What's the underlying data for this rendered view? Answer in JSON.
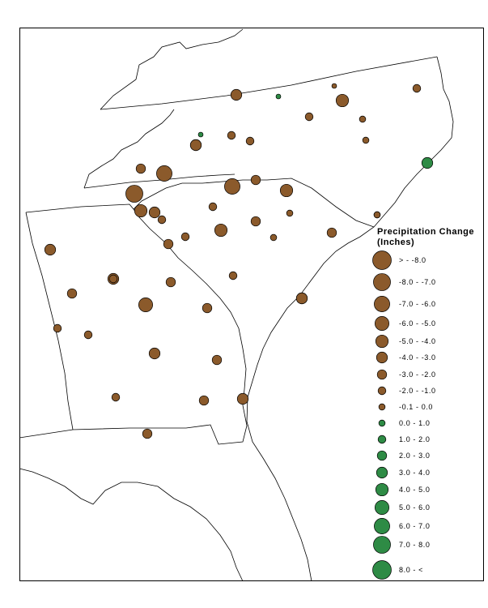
{
  "legend": {
    "title_line1": "Precipitation Change",
    "title_line2": "(Inches)",
    "classes": [
      {
        "label": "> - -8.0",
        "color": "#8b5a2b",
        "size": 10
      },
      {
        "label": "-8.0 - -7.0",
        "color": "#8b5a2b",
        "size": 9
      },
      {
        "label": "-7.0 - -6.0",
        "color": "#8b5a2b",
        "size": 8
      },
      {
        "label": "-6.0 - -5.0",
        "color": "#8b5a2b",
        "size": 7
      },
      {
        "label": "-5.0 - -4.0",
        "color": "#8b5a2b",
        "size": 6
      },
      {
        "label": "-4.0 - -3.0",
        "color": "#8b5a2b",
        "size": 5
      },
      {
        "label": "-3.0 - -2.0",
        "color": "#8b5a2b",
        "size": 4
      },
      {
        "label": "-2.0 - -1.0",
        "color": "#8b5a2b",
        "size": 3
      },
      {
        "label": "-0.1 - 0.0",
        "color": "#8b5a2b",
        "size": 2
      },
      {
        "label": "0.0 - 1.0",
        "color": "#2e8b45",
        "size": 2
      },
      {
        "label": "1.0 - 2.0",
        "color": "#2e8b45",
        "size": 3
      },
      {
        "label": "2.0 - 3.0",
        "color": "#2e8b45",
        "size": 4
      },
      {
        "label": "3.0 - 4.0",
        "color": "#2e8b45",
        "size": 5
      },
      {
        "label": "4.0 - 5.0",
        "color": "#2e8b45",
        "size": 6
      },
      {
        "label": "5.0 - 6.0",
        "color": "#2e8b45",
        "size": 7
      },
      {
        "label": "6.0 - 7.0",
        "color": "#2e8b45",
        "size": 8
      },
      {
        "label": "7.0 - 8.0",
        "color": "#2e8b45",
        "size": 9
      },
      {
        "label": "8.0 - <",
        "color": "#2e8b45",
        "size": 10
      }
    ]
  },
  "colors": {
    "dry": "#8b5a2b",
    "wet": "#2e8b45",
    "outline": "#000000"
  },
  "stations": [
    {
      "class": 5,
      "color": "dry"
    },
    {
      "class": 1,
      "color": "wet"
    },
    {
      "class": 1,
      "color": "dry"
    },
    {
      "class": 3,
      "color": "dry"
    },
    {
      "class": 6,
      "color": "dry"
    },
    {
      "class": 3,
      "color": "dry"
    },
    {
      "class": 2,
      "color": "dry"
    },
    {
      "class": 3,
      "color": "dry"
    },
    {
      "class": 1,
      "color": "wet"
    },
    {
      "class": 3,
      "color": "dry"
    },
    {
      "class": 2,
      "color": "dry"
    },
    {
      "class": 5,
      "color": "dry"
    },
    {
      "class": 4,
      "color": "dry"
    },
    {
      "class": 8,
      "color": "dry"
    },
    {
      "class": 4,
      "color": "dry"
    },
    {
      "class": 5,
      "color": "wet"
    },
    {
      "class": 9,
      "color": "dry"
    },
    {
      "class": 8,
      "color": "dry"
    },
    {
      "class": 6,
      "color": "dry"
    },
    {
      "class": 6,
      "color": "dry"
    },
    {
      "class": 3,
      "color": "dry"
    },
    {
      "class": 5,
      "color": "dry"
    },
    {
      "class": 2,
      "color": "dry"
    },
    {
      "class": 4,
      "color": "dry"
    },
    {
      "class": 3,
      "color": "dry"
    },
    {
      "class": 6,
      "color": "dry"
    },
    {
      "class": 3,
      "color": "dry"
    },
    {
      "class": 2,
      "color": "dry"
    },
    {
      "class": 4,
      "color": "dry"
    },
    {
      "class": 2,
      "color": "dry"
    },
    {
      "class": 3,
      "color": "dry"
    },
    {
      "class": 5,
      "color": "dry"
    },
    {
      "class": 3,
      "color": "dry"
    },
    {
      "class": 5,
      "color": "dry"
    },
    {
      "class": 4,
      "color": "dry"
    },
    {
      "class": 4,
      "color": "dry"
    },
    {
      "class": 5,
      "color": "dry"
    },
    {
      "class": 7,
      "color": "dry"
    },
    {
      "class": 4,
      "color": "dry"
    },
    {
      "class": 3,
      "color": "dry"
    },
    {
      "class": 3,
      "color": "dry"
    },
    {
      "class": 5,
      "color": "dry"
    },
    {
      "class": 4,
      "color": "dry"
    },
    {
      "class": 3,
      "color": "dry"
    },
    {
      "class": 4,
      "color": "dry"
    },
    {
      "class": 5,
      "color": "dry"
    },
    {
      "class": 4,
      "color": "dry"
    },
    {
      "class": 5,
      "color": "dry"
    },
    {
      "class": 2,
      "color": "dry"
    },
    {
      "class": 4,
      "color": "dry"
    },
    {
      "class": 3,
      "color": "dry"
    },
    {
      "class": 5,
      "color": "dry"
    }
  ]
}
